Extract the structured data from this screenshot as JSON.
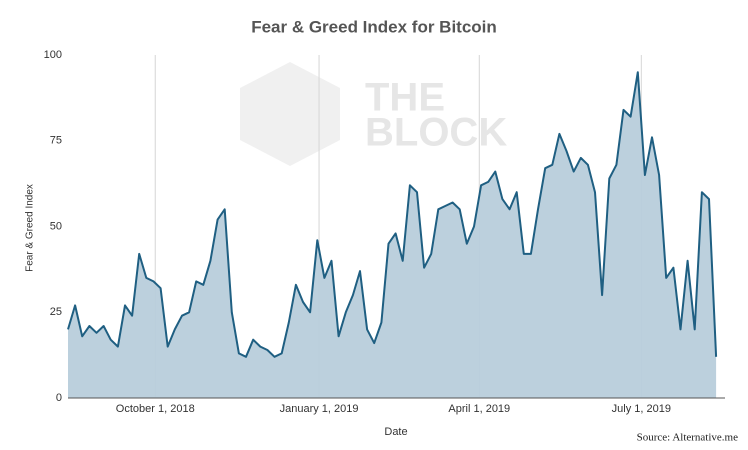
{
  "chart_data": {
    "type": "area",
    "title": "Fear & Greed Index for Bitcoin",
    "xlabel": "Date",
    "ylabel": "Fear & Greed Index",
    "source": "Source: Alternative.me",
    "watermark": [
      "THE",
      "BLOCK"
    ],
    "x": [
      "2018-08-13",
      "2018-08-17",
      "2018-08-21",
      "2018-08-25",
      "2018-08-29",
      "2018-09-02",
      "2018-09-06",
      "2018-09-10",
      "2018-09-14",
      "2018-09-18",
      "2018-09-22",
      "2018-09-26",
      "2018-09-30",
      "2018-10-04",
      "2018-10-08",
      "2018-10-12",
      "2018-10-16",
      "2018-10-20",
      "2018-10-24",
      "2018-10-28",
      "2018-11-01",
      "2018-11-05",
      "2018-11-09",
      "2018-11-13",
      "2018-11-17",
      "2018-11-21",
      "2018-11-25",
      "2018-11-29",
      "2018-12-03",
      "2018-12-07",
      "2018-12-11",
      "2018-12-15",
      "2018-12-19",
      "2018-12-23",
      "2018-12-27",
      "2018-12-31",
      "2019-01-04",
      "2019-01-08",
      "2019-01-12",
      "2019-01-16",
      "2019-01-20",
      "2019-01-24",
      "2019-01-28",
      "2019-02-01",
      "2019-02-05",
      "2019-02-09",
      "2019-02-13",
      "2019-02-17",
      "2019-02-21",
      "2019-02-25",
      "2019-03-01",
      "2019-03-05",
      "2019-03-09",
      "2019-03-13",
      "2019-03-17",
      "2019-03-21",
      "2019-03-25",
      "2019-03-29",
      "2019-04-02",
      "2019-04-06",
      "2019-04-10",
      "2019-04-14",
      "2019-04-18",
      "2019-04-22",
      "2019-04-26",
      "2019-04-30",
      "2019-05-04",
      "2019-05-08",
      "2019-05-12",
      "2019-05-16",
      "2019-05-20",
      "2019-05-24",
      "2019-05-28",
      "2019-06-01",
      "2019-06-05",
      "2019-06-09",
      "2019-06-13",
      "2019-06-17",
      "2019-06-21",
      "2019-06-25",
      "2019-06-29",
      "2019-07-03",
      "2019-07-07",
      "2019-07-11",
      "2019-07-15",
      "2019-07-19",
      "2019-07-23",
      "2019-07-27",
      "2019-07-31",
      "2019-08-04",
      "2019-08-08",
      "2019-08-12"
    ],
    "series": [
      {
        "name": "Fear & Greed Index",
        "color": "#1f5f82",
        "fill": "#b8cedb",
        "values": [
          20,
          27,
          18,
          21,
          19,
          21,
          17,
          15,
          27,
          24,
          42,
          35,
          34,
          32,
          15,
          20,
          24,
          25,
          34,
          33,
          40,
          52,
          55,
          25,
          13,
          12,
          17,
          15,
          14,
          12,
          13,
          22,
          33,
          28,
          25,
          46,
          35,
          40,
          18,
          25,
          30,
          37,
          20,
          16,
          22,
          45,
          48,
          40,
          62,
          60,
          38,
          42,
          55,
          56,
          57,
          55,
          45,
          50,
          62,
          63,
          66,
          58,
          55,
          60,
          42,
          42,
          55,
          67,
          68,
          77,
          72,
          66,
          70,
          68,
          60,
          30,
          64,
          68,
          84,
          82,
          95,
          65,
          76,
          65,
          35,
          38,
          20,
          40,
          20,
          60,
          58,
          12
        ]
      }
    ],
    "xlim": [
      "2018-08-13",
      "2019-08-17"
    ],
    "xticks": [
      {
        "value": "2018-10-01",
        "label": "October 1, 2018"
      },
      {
        "value": "2019-01-01",
        "label": "January 1, 2019"
      },
      {
        "value": "2019-04-01",
        "label": "April 1, 2019"
      },
      {
        "value": "2019-07-01",
        "label": "July 1, 2019"
      }
    ],
    "ylim": [
      0,
      100
    ],
    "yticks": [
      0,
      25,
      50,
      75,
      100
    ],
    "grid": "x"
  }
}
